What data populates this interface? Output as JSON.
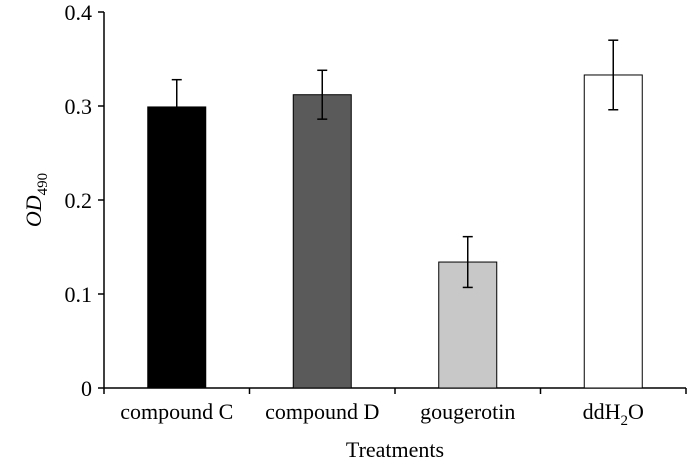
{
  "chart_data": {
    "type": "bar",
    "xlabel": "Treatments",
    "ylabel": {
      "main": "OD",
      "subscript": "490"
    },
    "ylim": [
      0,
      0.4
    ],
    "yticks": [
      "0",
      "0.1",
      "0.2",
      "0.3",
      "0.4"
    ],
    "grid": false,
    "categories": [
      {
        "main": "compound C",
        "subscript": "",
        "suffix": ""
      },
      {
        "main": "compound D",
        "subscript": "",
        "suffix": ""
      },
      {
        "main": "gougerotin",
        "subscript": "",
        "suffix": ""
      },
      {
        "main": "ddH",
        "subscript": "2",
        "suffix": "O"
      }
    ],
    "values": [
      0.299,
      0.312,
      0.134,
      0.333
    ],
    "error": [
      0.029,
      0.026,
      0.027,
      0.037
    ],
    "colors": [
      "#000000",
      "#5a5a5a",
      "#c8c8c8",
      "#ffffff"
    ]
  }
}
